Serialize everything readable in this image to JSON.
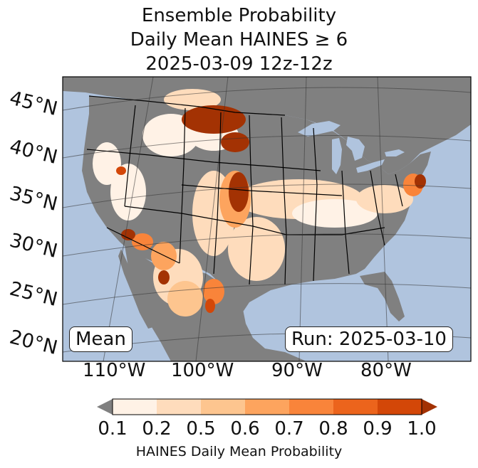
{
  "title": {
    "line1": "Ensemble Probability",
    "line2": "Daily Mean HAINES ≥ 6",
    "line3": "2025-03-09 12z-12z"
  },
  "latitude_labels": [
    "45°N",
    "40°N",
    "35°N",
    "30°N",
    "25°N",
    "20°N"
  ],
  "longitude_labels": [
    "110°W",
    "100°W",
    "90°W",
    "80°W"
  ],
  "stat_label": "Mean",
  "run_label": "Run: 2025-03-10",
  "colorbar": {
    "ticks": [
      "0.1",
      "0.2",
      "0.5",
      "0.6",
      "0.7",
      "0.8",
      "0.9",
      "1.0"
    ],
    "colors": [
      "#fff2e6",
      "#fedcbc",
      "#fdc58f",
      "#fda45e",
      "#f9843a",
      "#ec641c",
      "#d34708"
    ],
    "under_color": "#808080",
    "over_color": "#a33203",
    "label": "HAINES Daily Mean Probability"
  },
  "map_colors": {
    "ocean": "#b0c4de",
    "land_low": "#808080",
    "lakes": "#b0c4de"
  }
}
